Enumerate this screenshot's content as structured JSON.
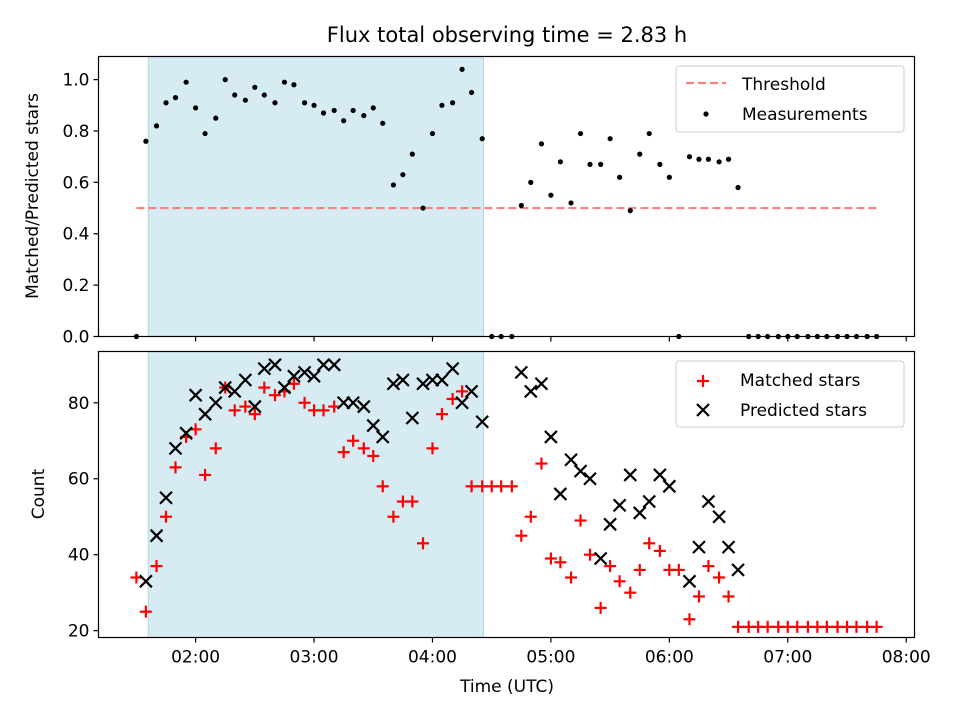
{
  "chart_data": {
    "title": "Flux total observing time = 2.83 h",
    "xlabel": "Time (UTC)",
    "x_ticks": [
      "02:00",
      "03:00",
      "04:00",
      "05:00",
      "06:00",
      "07:00",
      "08:00"
    ],
    "x_unit": "hours UTC",
    "xlim": [
      1.18,
      8.07
    ],
    "shaded_interval": {
      "start": 1.6,
      "end": 4.43,
      "color": "#add8e6"
    },
    "panels": [
      {
        "type": "scatter",
        "ylabel": "Matched/Predicted stars",
        "ylim": [
          0.0,
          1.09
        ],
        "y_ticks": [
          "0.0",
          "0.2",
          "0.4",
          "0.6",
          "0.8",
          "1.0"
        ],
        "legend": {
          "position": "top-right",
          "entries": [
            "Threshold",
            "Measurements"
          ]
        },
        "series": [
          {
            "name": "Threshold",
            "kind": "dashed-line",
            "color": "#ff7f7f",
            "x": [
              1.5,
              7.75
            ],
            "y": [
              0.5,
              0.5
            ]
          },
          {
            "name": "Measurements",
            "kind": "dot",
            "color": "#000000",
            "x": [
              1.5,
              1.58,
              1.67,
              1.75,
              1.83,
              1.92,
              2.0,
              2.08,
              2.17,
              2.25,
              2.33,
              2.42,
              2.5,
              2.58,
              2.67,
              2.75,
              2.83,
              2.92,
              3.0,
              3.08,
              3.17,
              3.25,
              3.33,
              3.42,
              3.5,
              3.58,
              3.67,
              3.75,
              3.83,
              3.92,
              4.0,
              4.08,
              4.17,
              4.25,
              4.33,
              4.42,
              4.5,
              4.58,
              4.67,
              4.75,
              4.83,
              4.92,
              5.0,
              5.08,
              5.17,
              5.25,
              5.33,
              5.42,
              5.5,
              5.58,
              5.67,
              5.75,
              5.83,
              5.92,
              6.0,
              6.08,
              6.17,
              6.25,
              6.33,
              6.42,
              6.5,
              6.58,
              6.67,
              6.75,
              6.83,
              6.92,
              7.0,
              7.08,
              7.17,
              7.25,
              7.33,
              7.42,
              7.5,
              7.58,
              7.67,
              7.75
            ],
            "y": [
              0.0,
              0.76,
              0.82,
              0.91,
              0.93,
              0.99,
              0.89,
              0.79,
              0.85,
              1.0,
              0.94,
              0.92,
              0.97,
              0.94,
              0.91,
              0.99,
              0.98,
              0.91,
              0.9,
              0.87,
              0.88,
              0.84,
              0.88,
              0.86,
              0.89,
              0.83,
              0.59,
              0.63,
              0.71,
              0.5,
              0.79,
              0.9,
              0.91,
              1.04,
              0.95,
              0.77,
              0.0,
              0.0,
              0.0,
              0.51,
              0.6,
              0.75,
              0.55,
              0.68,
              0.52,
              0.79,
              0.67,
              0.67,
              0.77,
              0.62,
              0.49,
              0.71,
              0.79,
              0.67,
              0.62,
              0.0,
              0.7,
              0.69,
              0.69,
              0.68,
              0.69,
              0.58,
              0.0,
              0.0,
              0.0,
              0.0,
              0.0,
              0.0,
              0.0,
              0.0,
              0.0,
              0.0,
              0.0,
              0.0,
              0.0,
              0.0
            ]
          }
        ]
      },
      {
        "type": "scatter",
        "ylabel": "Count",
        "ylim": [
          18.2,
          93.5
        ],
        "y_ticks": [
          "20",
          "40",
          "60",
          "80"
        ],
        "legend": {
          "position": "top-right",
          "entries": [
            "Matched stars",
            "Predicted stars"
          ]
        },
        "series": [
          {
            "name": "Matched stars",
            "kind": "plus",
            "color": "#ff0000",
            "x": [
              1.5,
              1.58,
              1.67,
              1.75,
              1.83,
              1.92,
              2.0,
              2.08,
              2.17,
              2.25,
              2.33,
              2.42,
              2.5,
              2.58,
              2.67,
              2.75,
              2.83,
              2.92,
              3.0,
              3.08,
              3.17,
              3.25,
              3.33,
              3.42,
              3.5,
              3.58,
              3.67,
              3.75,
              3.83,
              3.92,
              4.0,
              4.08,
              4.17,
              4.25,
              4.33,
              4.42,
              4.5,
              4.58,
              4.67,
              4.75,
              4.83,
              4.92,
              5.0,
              5.08,
              5.17,
              5.25,
              5.33,
              5.42,
              5.5,
              5.58,
              5.67,
              5.75,
              5.83,
              5.92,
              6.0,
              6.08,
              6.17,
              6.25,
              6.33,
              6.42,
              6.5,
              6.58,
              6.67,
              6.75,
              6.83,
              6.92,
              7.0,
              7.08,
              7.17,
              7.25,
              7.33,
              7.42,
              7.5,
              7.58,
              7.67,
              7.75
            ],
            "y": [
              34,
              25,
              37,
              50,
              63,
              71,
              73,
              61,
              68,
              84,
              78,
              79,
              77,
              84,
              82,
              83,
              85,
              80,
              78,
              78,
              79,
              67,
              70,
              68,
              66,
              58,
              50,
              54,
              54,
              43,
              68,
              77,
              81,
              83,
              58,
              58,
              58,
              58,
              58,
              45,
              50,
              64,
              39,
              38,
              34,
              49,
              40,
              26,
              37,
              33,
              30,
              36,
              43,
              41,
              36,
              36,
              23,
              29,
              37,
              34,
              29,
              21,
              21,
              21,
              21,
              21,
              21,
              21,
              21,
              21,
              21,
              21,
              21,
              21,
              21,
              21
            ]
          },
          {
            "name": "Predicted stars",
            "kind": "x",
            "color": "#000000",
            "x": [
              1.58,
              1.67,
              1.75,
              1.83,
              1.92,
              2.0,
              2.08,
              2.17,
              2.25,
              2.33,
              2.42,
              2.5,
              2.58,
              2.67,
              2.75,
              2.83,
              2.92,
              3.0,
              3.08,
              3.17,
              3.25,
              3.33,
              3.42,
              3.5,
              3.58,
              3.67,
              3.75,
              3.83,
              3.92,
              4.0,
              4.08,
              4.17,
              4.25,
              4.33,
              4.42,
              4.75,
              4.83,
              4.92,
              5.0,
              5.08,
              5.17,
              5.25,
              5.33,
              5.42,
              5.5,
              5.58,
              5.67,
              5.75,
              5.83,
              5.92,
              6.0,
              6.17,
              6.25,
              6.33,
              6.42,
              6.5,
              6.58
            ],
            "y": [
              33,
              45,
              55,
              68,
              72,
              82,
              77,
              80,
              84,
              83,
              86,
              79,
              89,
              90,
              84,
              87,
              88,
              87,
              90,
              90,
              80,
              80,
              79,
              74,
              71,
              85,
              86,
              76,
              85,
              86,
              86,
              89,
              80,
              83,
              75,
              88,
              83,
              85,
              71,
              56,
              65,
              62,
              60,
              39,
              48,
              53,
              61,
              51,
              54,
              61,
              58,
              33,
              42,
              54,
              50,
              42,
              36
            ]
          }
        ]
      }
    ]
  }
}
